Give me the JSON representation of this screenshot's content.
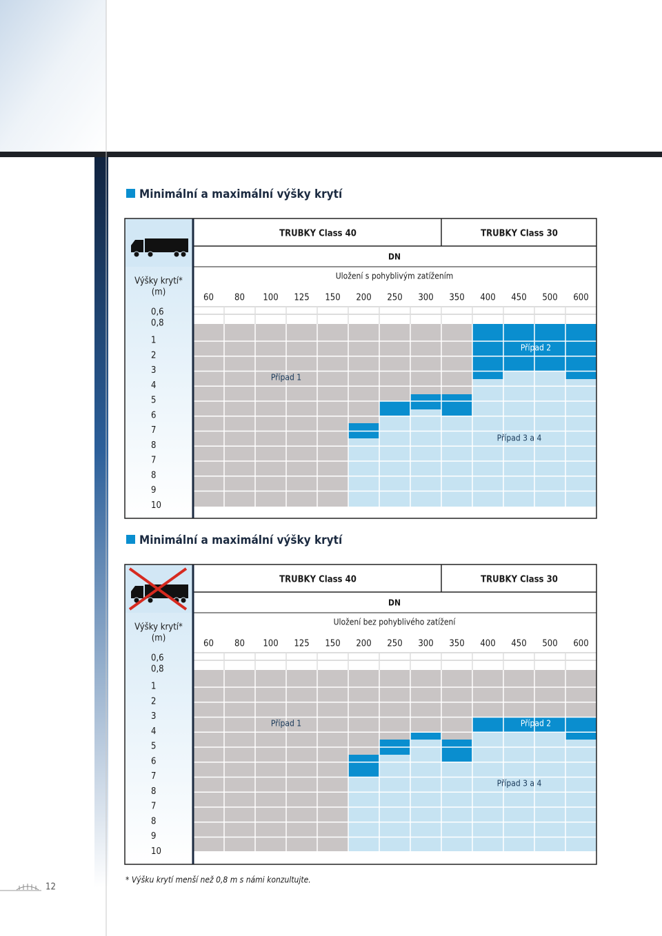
{
  "sections": [
    {
      "title": "Minimální a maximální výšky krytí",
      "class_headers": [
        "TRUBKY Class 40",
        "TRUBKY Class 30"
      ],
      "dn": "DN",
      "subtitle": "Uložení s pohyblivým zatížením",
      "height_label": "Výšky krytí*",
      "unit": "(m)",
      "row_labels": [
        "0,6",
        "0,8",
        "1",
        "2",
        "3",
        "4",
        "5",
        "6",
        "7",
        "8",
        "7",
        "8",
        "9",
        "10"
      ],
      "columns": [
        60,
        80,
        100,
        125,
        150,
        200,
        250,
        300,
        350,
        400,
        450,
        500,
        600
      ],
      "cases": [
        "Případ 1",
        "Případ 2",
        "Případ 3 a 4"
      ]
    },
    {
      "title": "Minimální a maximální výšky krytí",
      "class_headers": [
        "TRUBKY Class 40",
        "TRUBKY Class 30"
      ],
      "dn": "DN",
      "subtitle": "Uložení bez pohyblivého zatížení",
      "height_label": "Výšky krytí*",
      "unit": "(m)",
      "row_labels": [
        "0,6",
        "0,8",
        "1",
        "2",
        "3",
        "4",
        "5",
        "6",
        "7",
        "8",
        "7",
        "8",
        "9",
        "10"
      ],
      "columns": [
        60,
        80,
        100,
        125,
        150,
        200,
        250,
        300,
        350,
        400,
        450,
        500,
        600
      ],
      "cases": [
        "Případ 1",
        "Případ 2",
        "Případ 3 a 4"
      ]
    }
  ],
  "footnote": "* Výšku krytí menší než 0,8 m s námi konzultujte.",
  "page_number": "12"
}
